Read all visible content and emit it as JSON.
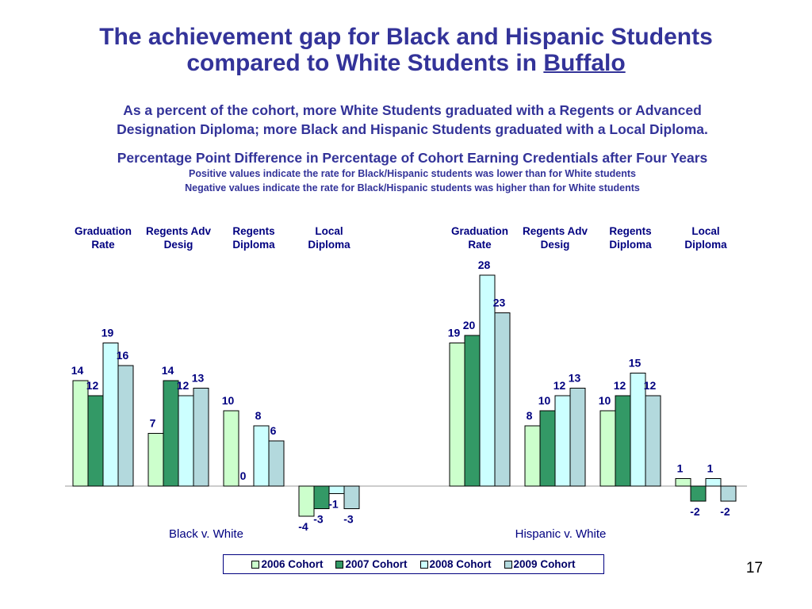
{
  "slide": {
    "title_line1": "The achievement gap for Black and Hispanic Students",
    "title_line2_prefix": "compared to White Students in ",
    "title_line2_underlined": "Buffalo",
    "subtitle_line1": "As a percent of the cohort, more White Students graduated with a Regents or Advanced",
    "subtitle_line2": "Designation Diploma; more Black and Hispanic Students graduated with a Local Diploma.",
    "chart_heading": "Percentage Point Difference in Percentage of Cohort Earning Credentials after Four Years",
    "note_positive": "Positive values indicate the rate for Black/Hispanic students was lower than for White students",
    "note_negative": "Negative values indicate the rate for Black/Hispanic students was higher than for White students",
    "page_number": "17"
  },
  "chart_data": {
    "type": "bar",
    "categories": [
      "Graduation Rate",
      "Regents Adv Desig",
      "Regents Diploma",
      "Local Diploma"
    ],
    "groups": [
      {
        "label": "Black v. White",
        "series": [
          {
            "name": "2006 Cohort",
            "values": [
              14,
              7,
              10,
              -4
            ]
          },
          {
            "name": "2007 Cohort",
            "values": [
              12,
              14,
              0,
              -3
            ]
          },
          {
            "name": "2008 Cohort",
            "values": [
              19,
              12,
              8,
              -1
            ]
          },
          {
            "name": "2009 Cohort",
            "values": [
              16,
              13,
              6,
              -3
            ]
          }
        ]
      },
      {
        "label": "Hispanic v. White",
        "series": [
          {
            "name": "2006 Cohort",
            "values": [
              19,
              8,
              10,
              1
            ]
          },
          {
            "name": "2007 Cohort",
            "values": [
              20,
              10,
              12,
              -2
            ]
          },
          {
            "name": "2008 Cohort",
            "values": [
              28,
              12,
              15,
              1
            ]
          },
          {
            "name": "2009 Cohort",
            "values": [
              23,
              13,
              12,
              -2
            ]
          }
        ]
      }
    ],
    "legend": [
      "2006 Cohort",
      "2007 Cohort",
      "2008 Cohort",
      "2009 Cohort"
    ],
    "legend_position": "bottom",
    "ylim": [
      -5,
      30
    ],
    "grid": false,
    "colors": [
      "#ccffcc",
      "#339966",
      "#ccffff",
      "#b3d9dd"
    ]
  }
}
